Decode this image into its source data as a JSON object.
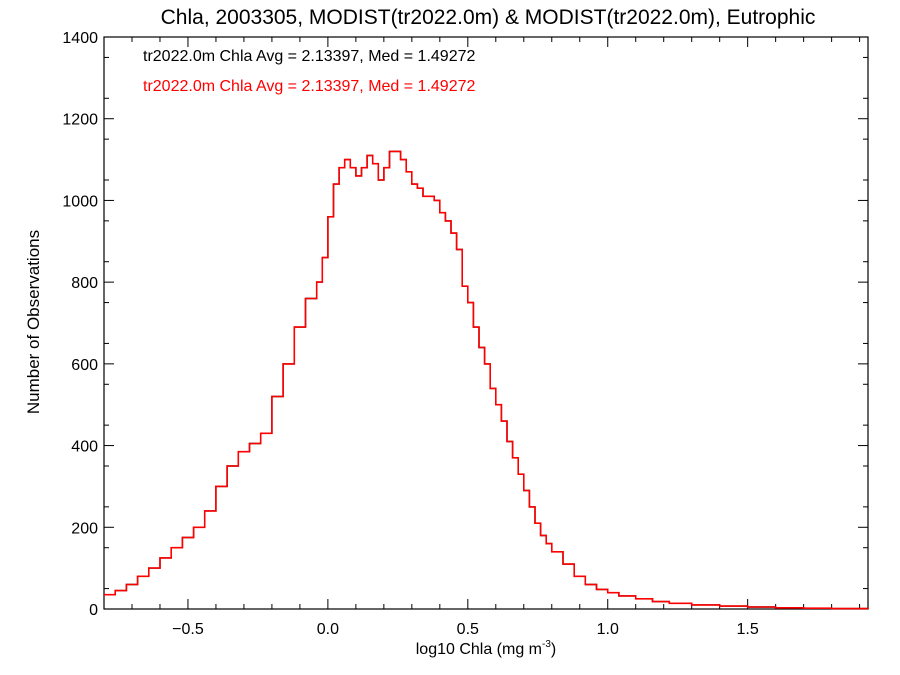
{
  "chart_data": {
    "type": "histogram-step",
    "title": "Chla, 2003305, MODIST(tr2022.0m) & MODIST(tr2022.0m), Eutrophic",
    "xlabel_main": "log10 Chla (mg m",
    "xlabel_sup": "-3",
    "xlabel_close": ")",
    "ylabel": "Number of Observations",
    "xlim": [
      -0.8,
      1.93
    ],
    "ylim": [
      0,
      1400
    ],
    "xticks": [
      -0.5,
      0.0,
      0.5,
      1.0,
      1.5
    ],
    "xtick_labels": [
      "−0.5",
      "0.0",
      "0.5",
      "1.0",
      "1.5"
    ],
    "yticks": [
      0,
      200,
      400,
      600,
      800,
      1000,
      1200,
      1400
    ],
    "ytick_labels": [
      "0",
      "200",
      "400",
      "600",
      "800",
      "1000",
      "1200",
      "1400"
    ],
    "annotations": [
      {
        "text": "tr2022.0m Chla Avg = 2.13397, Med = 1.49272",
        "color": "#000000"
      },
      {
        "text": "tr2022.0m Chla Avg = 2.13397, Med = 1.49272",
        "color": "#ff0000"
      }
    ],
    "series_colors": [
      "#000000",
      "#ff0000"
    ],
    "points": [
      [
        -0.8,
        35
      ],
      [
        -0.76,
        45
      ],
      [
        -0.72,
        60
      ],
      [
        -0.68,
        80
      ],
      [
        -0.64,
        100
      ],
      [
        -0.6,
        125
      ],
      [
        -0.56,
        150
      ],
      [
        -0.52,
        175
      ],
      [
        -0.48,
        200
      ],
      [
        -0.44,
        240
      ],
      [
        -0.4,
        300
      ],
      [
        -0.36,
        350
      ],
      [
        -0.32,
        385
      ],
      [
        -0.28,
        405
      ],
      [
        -0.24,
        430
      ],
      [
        -0.2,
        520
      ],
      [
        -0.16,
        600
      ],
      [
        -0.12,
        690
      ],
      [
        -0.08,
        760
      ],
      [
        -0.04,
        800
      ],
      [
        -0.02,
        860
      ],
      [
        0.0,
        960
      ],
      [
        0.02,
        1040
      ],
      [
        0.04,
        1080
      ],
      [
        0.06,
        1100
      ],
      [
        0.08,
        1080
      ],
      [
        0.1,
        1060
      ],
      [
        0.12,
        1080
      ],
      [
        0.14,
        1110
      ],
      [
        0.16,
        1090
      ],
      [
        0.18,
        1050
      ],
      [
        0.2,
        1080
      ],
      [
        0.22,
        1120
      ],
      [
        0.24,
        1120
      ],
      [
        0.26,
        1100
      ],
      [
        0.28,
        1070
      ],
      [
        0.3,
        1040
      ],
      [
        0.32,
        1030
      ],
      [
        0.34,
        1010
      ],
      [
        0.36,
        1010
      ],
      [
        0.38,
        1000
      ],
      [
        0.4,
        970
      ],
      [
        0.42,
        950
      ],
      [
        0.44,
        920
      ],
      [
        0.46,
        880
      ],
      [
        0.48,
        790
      ],
      [
        0.5,
        750
      ],
      [
        0.52,
        690
      ],
      [
        0.54,
        640
      ],
      [
        0.56,
        600
      ],
      [
        0.58,
        540
      ],
      [
        0.6,
        500
      ],
      [
        0.62,
        460
      ],
      [
        0.64,
        410
      ],
      [
        0.66,
        370
      ],
      [
        0.68,
        330
      ],
      [
        0.7,
        290
      ],
      [
        0.72,
        250
      ],
      [
        0.74,
        210
      ],
      [
        0.76,
        180
      ],
      [
        0.78,
        160
      ],
      [
        0.8,
        140
      ],
      [
        0.84,
        110
      ],
      [
        0.88,
        80
      ],
      [
        0.92,
        60
      ],
      [
        0.96,
        48
      ],
      [
        1.0,
        40
      ],
      [
        1.04,
        32
      ],
      [
        1.1,
        25
      ],
      [
        1.16,
        18
      ],
      [
        1.22,
        14
      ],
      [
        1.3,
        10
      ],
      [
        1.4,
        7
      ],
      [
        1.5,
        5
      ],
      [
        1.6,
        3
      ],
      [
        1.7,
        2
      ],
      [
        1.8,
        1
      ],
      [
        1.93,
        0
      ]
    ]
  }
}
